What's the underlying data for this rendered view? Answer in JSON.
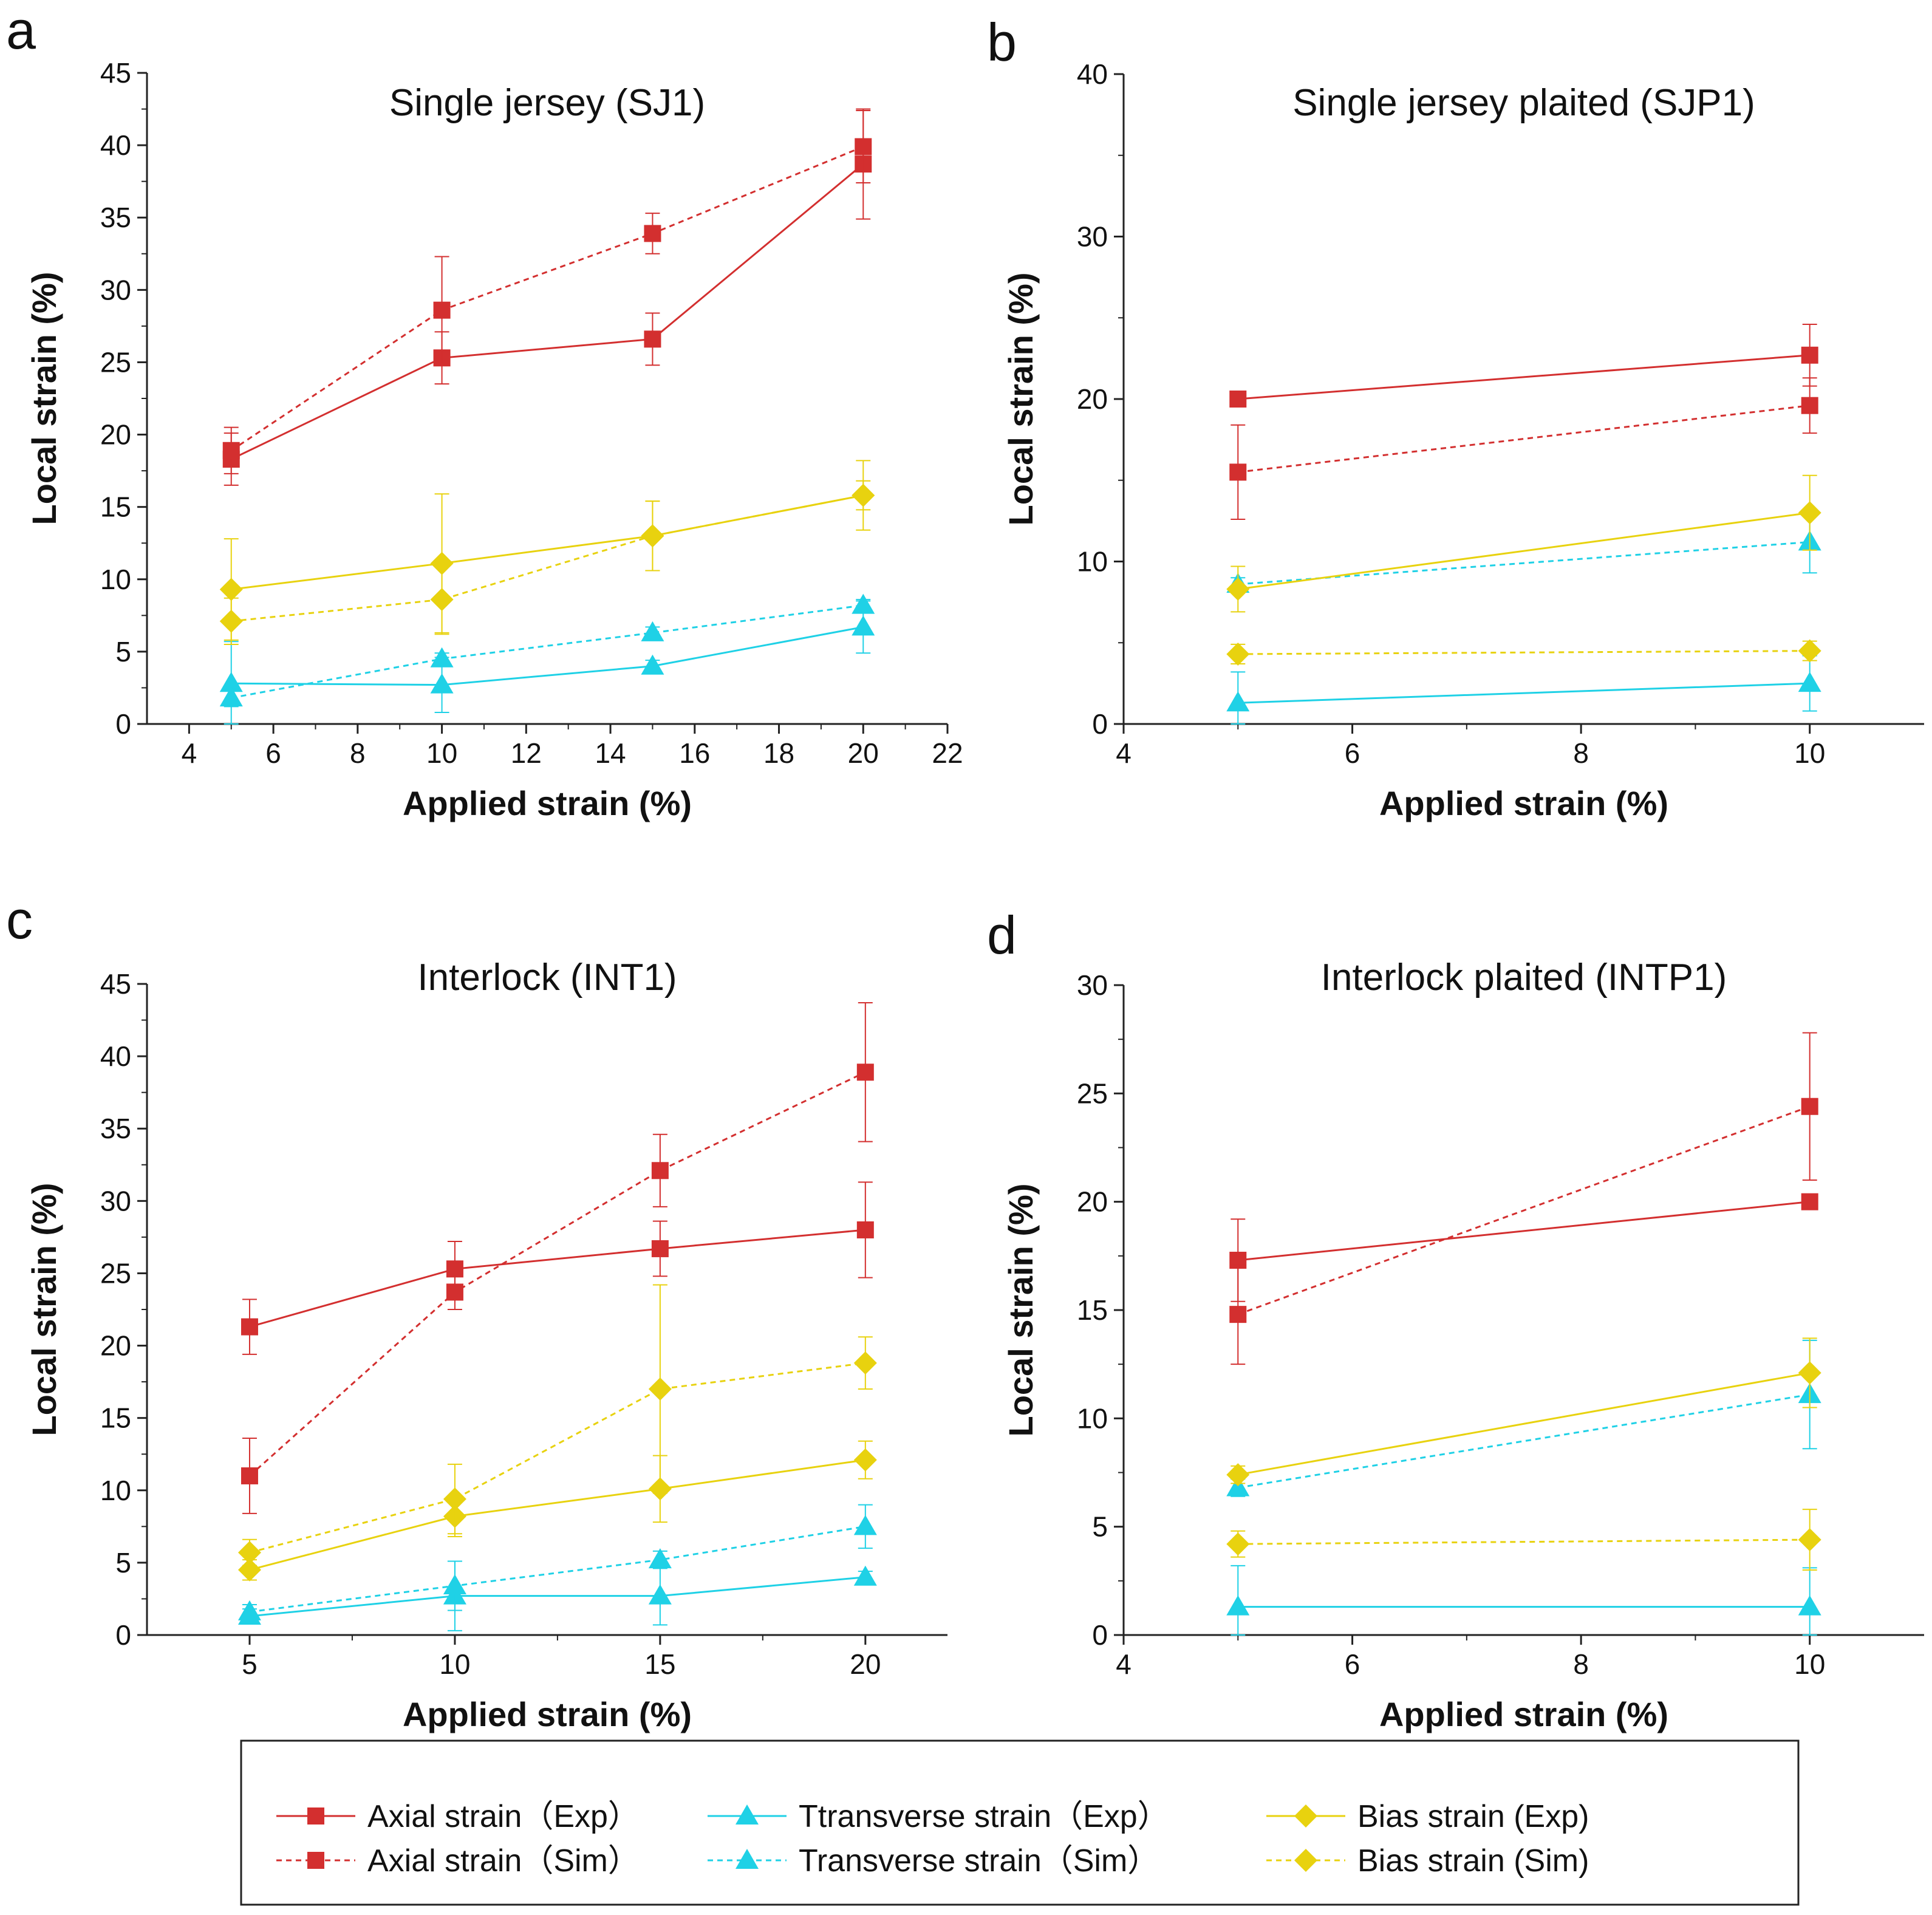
{
  "legend": {
    "items": [
      {
        "label": "Axial strain（Exp）",
        "color": "#d32f2f",
        "marker": "square",
        "dashed": false
      },
      {
        "label": "Axial strain（Sim）",
        "color": "#d32f2f",
        "marker": "square",
        "dashed": true
      },
      {
        "label": "Ttransverse strain（Exp）",
        "color": "#1fd1e6",
        "marker": "triangle",
        "dashed": false
      },
      {
        "label": "Transverse strain（Sim）",
        "color": "#1fd1e6",
        "marker": "triangle",
        "dashed": true
      },
      {
        "label": "Bias strain (Exp)",
        "color": "#e8d20f",
        "marker": "diamond",
        "dashed": false
      },
      {
        "label": "Bias strain (Sim)",
        "color": "#e8d20f",
        "marker": "diamond",
        "dashed": true
      }
    ]
  },
  "chart_data": [
    {
      "panel": "a",
      "type": "line",
      "title": "Single jersey (SJ1)",
      "xlabel": "Applied strain (%)",
      "ylabel": "Local strain (%)",
      "xlim": [
        3,
        22
      ],
      "ylim": [
        0,
        45
      ],
      "xticks": [
        4,
        6,
        8,
        10,
        12,
        14,
        16,
        18,
        20,
        22
      ],
      "yticks": [
        0,
        5,
        10,
        15,
        20,
        25,
        30,
        35,
        40,
        45
      ],
      "x": [
        5,
        10,
        15,
        20
      ],
      "series": [
        {
          "name": "Axial strain（Exp）",
          "color": "#d32f2f",
          "marker": "square",
          "dashed": false,
          "values": [
            18.3,
            25.3,
            26.6,
            38.7
          ],
          "errors": [
            1.8,
            1.8,
            1.8,
            3.8
          ]
        },
        {
          "name": "Axial strain（Sim）",
          "color": "#d32f2f",
          "marker": "square",
          "dashed": true,
          "values": [
            18.9,
            28.6,
            33.9,
            39.9
          ],
          "errors": [
            1.6,
            3.7,
            1.4,
            2.5
          ]
        },
        {
          "name": "Ttransverse strain（Exp）",
          "color": "#1fd1e6",
          "marker": "triangle",
          "dashed": false,
          "values": [
            2.8,
            2.7,
            4.0,
            6.7
          ],
          "errors": [
            2.9,
            1.9,
            0.4,
            1.8
          ]
        },
        {
          "name": "Transverse strain（Sim）",
          "color": "#1fd1e6",
          "marker": "triangle",
          "dashed": true,
          "values": [
            1.8,
            4.5,
            6.3,
            8.2
          ],
          "errors": [
            0.6,
            0.4,
            0.4,
            0.4
          ]
        },
        {
          "name": "Bias strain (Exp)",
          "color": "#e8d20f",
          "marker": "diamond",
          "dashed": false,
          "values": [
            9.3,
            11.1,
            13.0,
            15.8
          ],
          "errors": [
            3.5,
            4.8,
            2.4,
            2.4
          ]
        },
        {
          "name": "Bias strain (Sim)",
          "color": "#e8d20f",
          "marker": "diamond",
          "dashed": true,
          "values": [
            7.1,
            8.6,
            13.0,
            15.8
          ],
          "errors": [
            1.6,
            2.4,
            2.4,
            1.0
          ]
        }
      ]
    },
    {
      "panel": "b",
      "type": "line",
      "title": "Single jersey plaited (SJP1)",
      "xlabel": "Applied strain (%)",
      "ylabel": "Local strain (%)",
      "xlim": [
        4,
        11
      ],
      "ylim": [
        0,
        40
      ],
      "xticks": [
        4,
        6,
        8,
        10
      ],
      "yticks": [
        0,
        10,
        20,
        30,
        40
      ],
      "x": [
        5,
        10
      ],
      "series": [
        {
          "name": "Axial strain（Exp）",
          "color": "#d32f2f",
          "marker": "square",
          "dashed": false,
          "values": [
            20.0,
            22.7
          ],
          "errors": [
            0.3,
            1.9
          ]
        },
        {
          "name": "Axial strain（Sim）",
          "color": "#d32f2f",
          "marker": "square",
          "dashed": true,
          "values": [
            15.5,
            19.6
          ],
          "errors": [
            2.9,
            1.7
          ]
        },
        {
          "name": "Ttransverse strain（Exp）",
          "color": "#1fd1e6",
          "marker": "triangle",
          "dashed": false,
          "values": [
            1.3,
            2.5
          ],
          "errors": [
            1.9,
            1.7
          ]
        },
        {
          "name": "Transverse strain（Sim）",
          "color": "#1fd1e6",
          "marker": "triangle",
          "dashed": true,
          "values": [
            8.6,
            11.2
          ],
          "errors": [
            0.4,
            1.9
          ]
        },
        {
          "name": "Bias strain (Exp)",
          "color": "#e8d20f",
          "marker": "diamond",
          "dashed": false,
          "values": [
            8.3,
            13.0
          ],
          "errors": [
            1.4,
            2.3
          ]
        },
        {
          "name": "Bias strain (Sim)",
          "color": "#e8d20f",
          "marker": "diamond",
          "dashed": true,
          "values": [
            4.3,
            4.5
          ],
          "errors": [
            0.6,
            0.6
          ]
        }
      ]
    },
    {
      "panel": "c",
      "type": "line",
      "title": "Interlock (INT1)",
      "xlabel": "Applied strain (%)",
      "ylabel": "Local strain (%)",
      "xlim": [
        2.5,
        22
      ],
      "ylim": [
        0,
        45
      ],
      "xticks": [
        5,
        10,
        15,
        20
      ],
      "yticks": [
        0,
        5,
        10,
        15,
        20,
        25,
        30,
        35,
        40,
        45
      ],
      "x": [
        5,
        10,
        15,
        20
      ],
      "series": [
        {
          "name": "Axial strain（Exp）",
          "color": "#d32f2f",
          "marker": "square",
          "dashed": false,
          "values": [
            21.3,
            25.3,
            26.7,
            28.0
          ],
          "errors": [
            1.9,
            1.9,
            1.9,
            3.3
          ]
        },
        {
          "name": "Axial strain（Sim）",
          "color": "#d32f2f",
          "marker": "square",
          "dashed": true,
          "values": [
            11.0,
            23.7,
            32.1,
            38.9
          ],
          "errors": [
            2.6,
            1.2,
            2.5,
            4.8
          ]
        },
        {
          "name": "Ttransverse strain（Exp）",
          "color": "#1fd1e6",
          "marker": "triangle",
          "dashed": false,
          "values": [
            1.3,
            2.7,
            2.7,
            4.0
          ],
          "errors": [
            0.5,
            2.4,
            2.0,
            0.4
          ]
        },
        {
          "name": "Transverse strain（Sim）",
          "color": "#1fd1e6",
          "marker": "triangle",
          "dashed": true,
          "values": [
            1.6,
            3.4,
            5.2,
            7.5
          ],
          "errors": [
            0.5,
            1.7,
            0.6,
            1.5
          ]
        },
        {
          "name": "Bias strain (Exp)",
          "color": "#e8d20f",
          "marker": "diamond",
          "dashed": false,
          "values": [
            4.5,
            8.2,
            10.1,
            12.1
          ],
          "errors": [
            0.7,
            1.4,
            2.3,
            1.3
          ]
        },
        {
          "name": "Bias strain (Sim)",
          "color": "#e8d20f",
          "marker": "diamond",
          "dashed": true,
          "values": [
            5.7,
            9.4,
            17.0,
            18.8
          ],
          "errors": [
            0.9,
            2.4,
            7.2,
            1.8
          ]
        }
      ]
    },
    {
      "panel": "d",
      "type": "line",
      "title": "Interlock plaited (INTP1)",
      "xlabel": "Applied strain (%)",
      "ylabel": "Local strain (%)",
      "xlim": [
        4,
        11
      ],
      "ylim": [
        0,
        30
      ],
      "xticks": [
        4,
        6,
        8,
        10
      ],
      "yticks": [
        0,
        5,
        10,
        15,
        20,
        25,
        30
      ],
      "x": [
        5,
        10
      ],
      "series": [
        {
          "name": "Axial strain（Exp）",
          "color": "#d32f2f",
          "marker": "square",
          "dashed": false,
          "values": [
            17.3,
            20.0
          ],
          "errors": [
            1.9,
            0.3
          ]
        },
        {
          "name": "Axial strain（Sim）",
          "color": "#d32f2f",
          "marker": "square",
          "dashed": true,
          "values": [
            14.8,
            24.4
          ],
          "errors": [
            2.3,
            3.4
          ]
        },
        {
          "name": "Ttransverse strain（Exp）",
          "color": "#1fd1e6",
          "marker": "triangle",
          "dashed": false,
          "values": [
            1.3,
            1.3
          ],
          "errors": [
            1.9,
            1.8
          ]
        },
        {
          "name": "Transverse strain（Sim）",
          "color": "#1fd1e6",
          "marker": "triangle",
          "dashed": true,
          "values": [
            6.8,
            11.1
          ],
          "errors": [
            0.4,
            2.5
          ]
        },
        {
          "name": "Bias strain (Exp)",
          "color": "#e8d20f",
          "marker": "diamond",
          "dashed": false,
          "values": [
            7.4,
            12.1
          ],
          "errors": [
            0.4,
            1.6
          ]
        },
        {
          "name": "Bias strain (Sim)",
          "color": "#e8d20f",
          "marker": "diamond",
          "dashed": true,
          "values": [
            4.2,
            4.4
          ],
          "errors": [
            0.6,
            1.4
          ]
        }
      ]
    }
  ]
}
